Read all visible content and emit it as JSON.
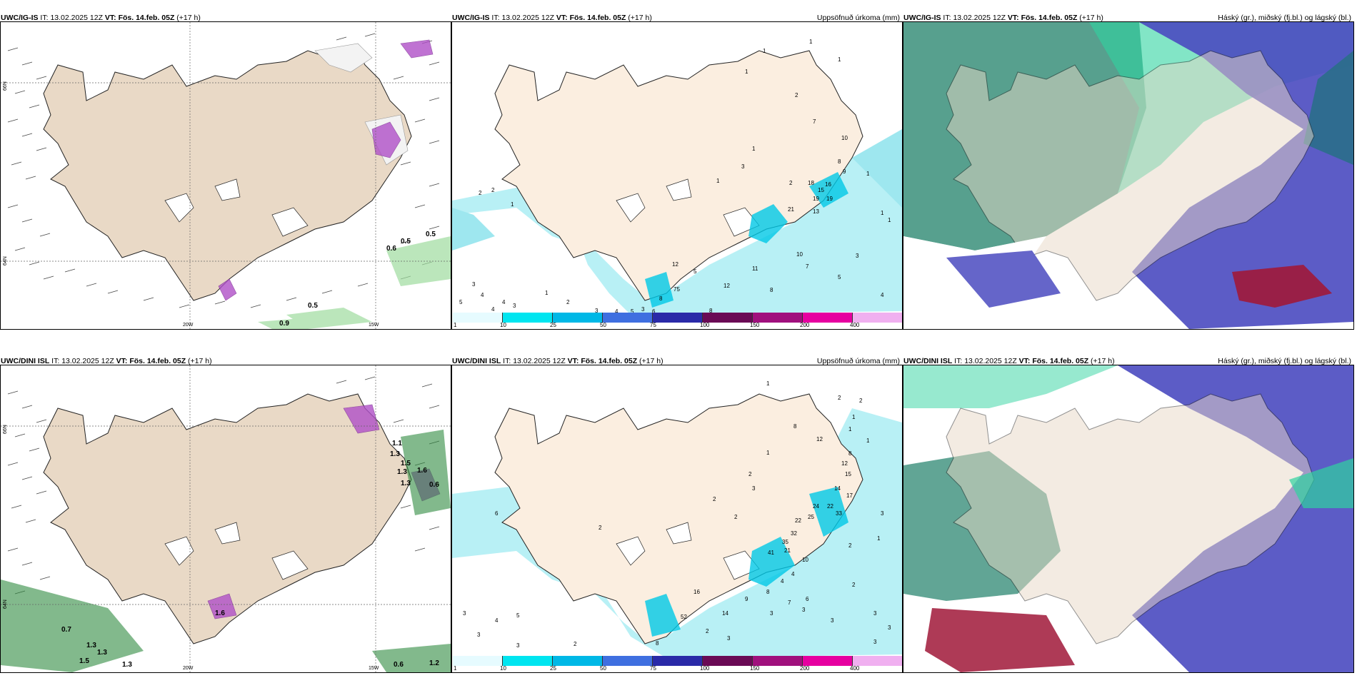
{
  "issue_time_label": "IT:",
  "valid_time_label": "VT:",
  "rows": [
    {
      "model": "UWC/IG-IS",
      "issue_time": "13.02.2025 12Z",
      "valid_time": "Fös. 14.feb. 05Z",
      "lead": "(+17 h)"
    },
    {
      "model": "UWC/DINI ISL",
      "issue_time": "13.02.2025 12Z",
      "valid_time": "Fös. 14.feb. 05Z",
      "lead": "(+17 h)"
    }
  ],
  "precip_title": "Uppsöfnuð úrkoma (mm)",
  "cloud_title": "Háský (gr.), miðský (fj.bl.) og lágský (bl.)",
  "axis_labels": {
    "lon_20w": "20W",
    "lon_15w": "15W",
    "lat_66n": "66N",
    "lat_64n": "64N"
  },
  "colorbar": {
    "labels": [
      "1",
      "10",
      "25",
      "50",
      "75",
      "100",
      "150",
      "200",
      "400"
    ],
    "colors": [
      "#e6fbff",
      "#00e5f0",
      "#00b8e6",
      "#3f6fe0",
      "#2a2aa8",
      "#6a0a55",
      "#a0107d",
      "#e600a0",
      "#f0b0f0"
    ]
  },
  "wind_panel_values": {
    "top": [
      "0.5",
      "0.6",
      "0.5",
      "0.9",
      "0.5"
    ],
    "bottom": [
      "0.7",
      "1.3",
      "1.3",
      "1.5",
      "1.3",
      "0.6",
      "1.2",
      "1.1",
      "1.3",
      "1.5",
      "1.3",
      "1.6",
      "0.6",
      "1.3",
      "1.6"
    ]
  },
  "precip_values": {
    "top": [
      "1",
      "1",
      "1",
      "1",
      "2",
      "7",
      "10",
      "8",
      "9",
      "16",
      "15",
      "19",
      "19",
      "13",
      "18",
      "21",
      "2",
      "1",
      "1",
      "1",
      "1",
      "3",
      "1",
      "2",
      "2",
      "1",
      "12",
      "5",
      "75",
      "8",
      "12",
      "11",
      "10",
      "7",
      "5",
      "3",
      "8",
      "4",
      "3",
      "5",
      "4",
      "4",
      "4",
      "1",
      "2",
      "3",
      "3",
      "4",
      "5",
      "3",
      "8",
      "6"
    ],
    "bottom": [
      "1",
      "2",
      "2",
      "1",
      "8",
      "12",
      "1",
      "1",
      "8",
      "12",
      "15",
      "14",
      "17",
      "22",
      "33",
      "24",
      "25",
      "22",
      "32",
      "35",
      "41",
      "21",
      "10",
      "2",
      "2",
      "3",
      "2",
      "1",
      "3",
      "2",
      "1",
      "4",
      "6",
      "2",
      "16",
      "14",
      "9",
      "52",
      "8",
      "7",
      "4",
      "6",
      "3",
      "3",
      "3",
      "2",
      "3",
      "3",
      "2",
      "3",
      "3",
      "3",
      "4",
      "5",
      "3",
      "3",
      "8",
      "2"
    ]
  }
}
